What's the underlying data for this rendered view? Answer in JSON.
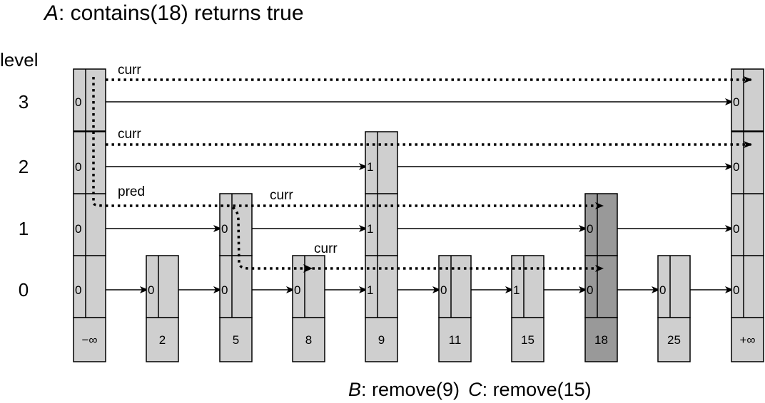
{
  "title": {
    "letter": "A",
    "text": ": contains(18) returns true"
  },
  "footer": {
    "b_letter": "B",
    "b_text": ": remove(9)",
    "c_letter": "C",
    "c_text": ": remove(15)"
  },
  "level_header": "level",
  "levels": [
    "0",
    "1",
    "2",
    "3"
  ],
  "nodes": [
    {
      "key": "−∞",
      "top": 3,
      "marks": [
        "0",
        "0",
        "0",
        "0"
      ],
      "highlight": false
    },
    {
      "key": "2",
      "top": 0,
      "marks": [
        "0"
      ],
      "highlight": false
    },
    {
      "key": "5",
      "top": 1,
      "marks": [
        "0",
        "0"
      ],
      "highlight": false
    },
    {
      "key": "8",
      "top": 0,
      "marks": [
        "0"
      ],
      "highlight": false
    },
    {
      "key": "9",
      "top": 2,
      "marks": [
        "1",
        "1",
        "1"
      ],
      "highlight": false
    },
    {
      "key": "11",
      "top": 0,
      "marks": [
        "0"
      ],
      "highlight": false
    },
    {
      "key": "15",
      "top": 0,
      "marks": [
        "1"
      ],
      "highlight": false
    },
    {
      "key": "18",
      "top": 1,
      "marks": [
        "0",
        "0"
      ],
      "highlight": true
    },
    {
      "key": "25",
      "top": 0,
      "marks": [
        "0"
      ],
      "highlight": false
    },
    {
      "key": "+∞",
      "top": 3,
      "marks": [
        "0",
        "0",
        "0",
        "0"
      ],
      "highlight": false
    }
  ],
  "pointer_labels": [
    {
      "text": "curr",
      "near_level": 3,
      "near_node": 0
    },
    {
      "text": "curr",
      "near_level": 2,
      "near_node": 0
    },
    {
      "text": "pred",
      "near_level": 1,
      "near_node": 0
    },
    {
      "text": "curr",
      "near_level": 1,
      "near_node": 2
    },
    {
      "text": "curr",
      "near_level": 0,
      "near_node": 3
    }
  ],
  "colors": {
    "node_fill": "#cfcfcf",
    "highlight_fill": "#999999",
    "line": "#000000"
  }
}
